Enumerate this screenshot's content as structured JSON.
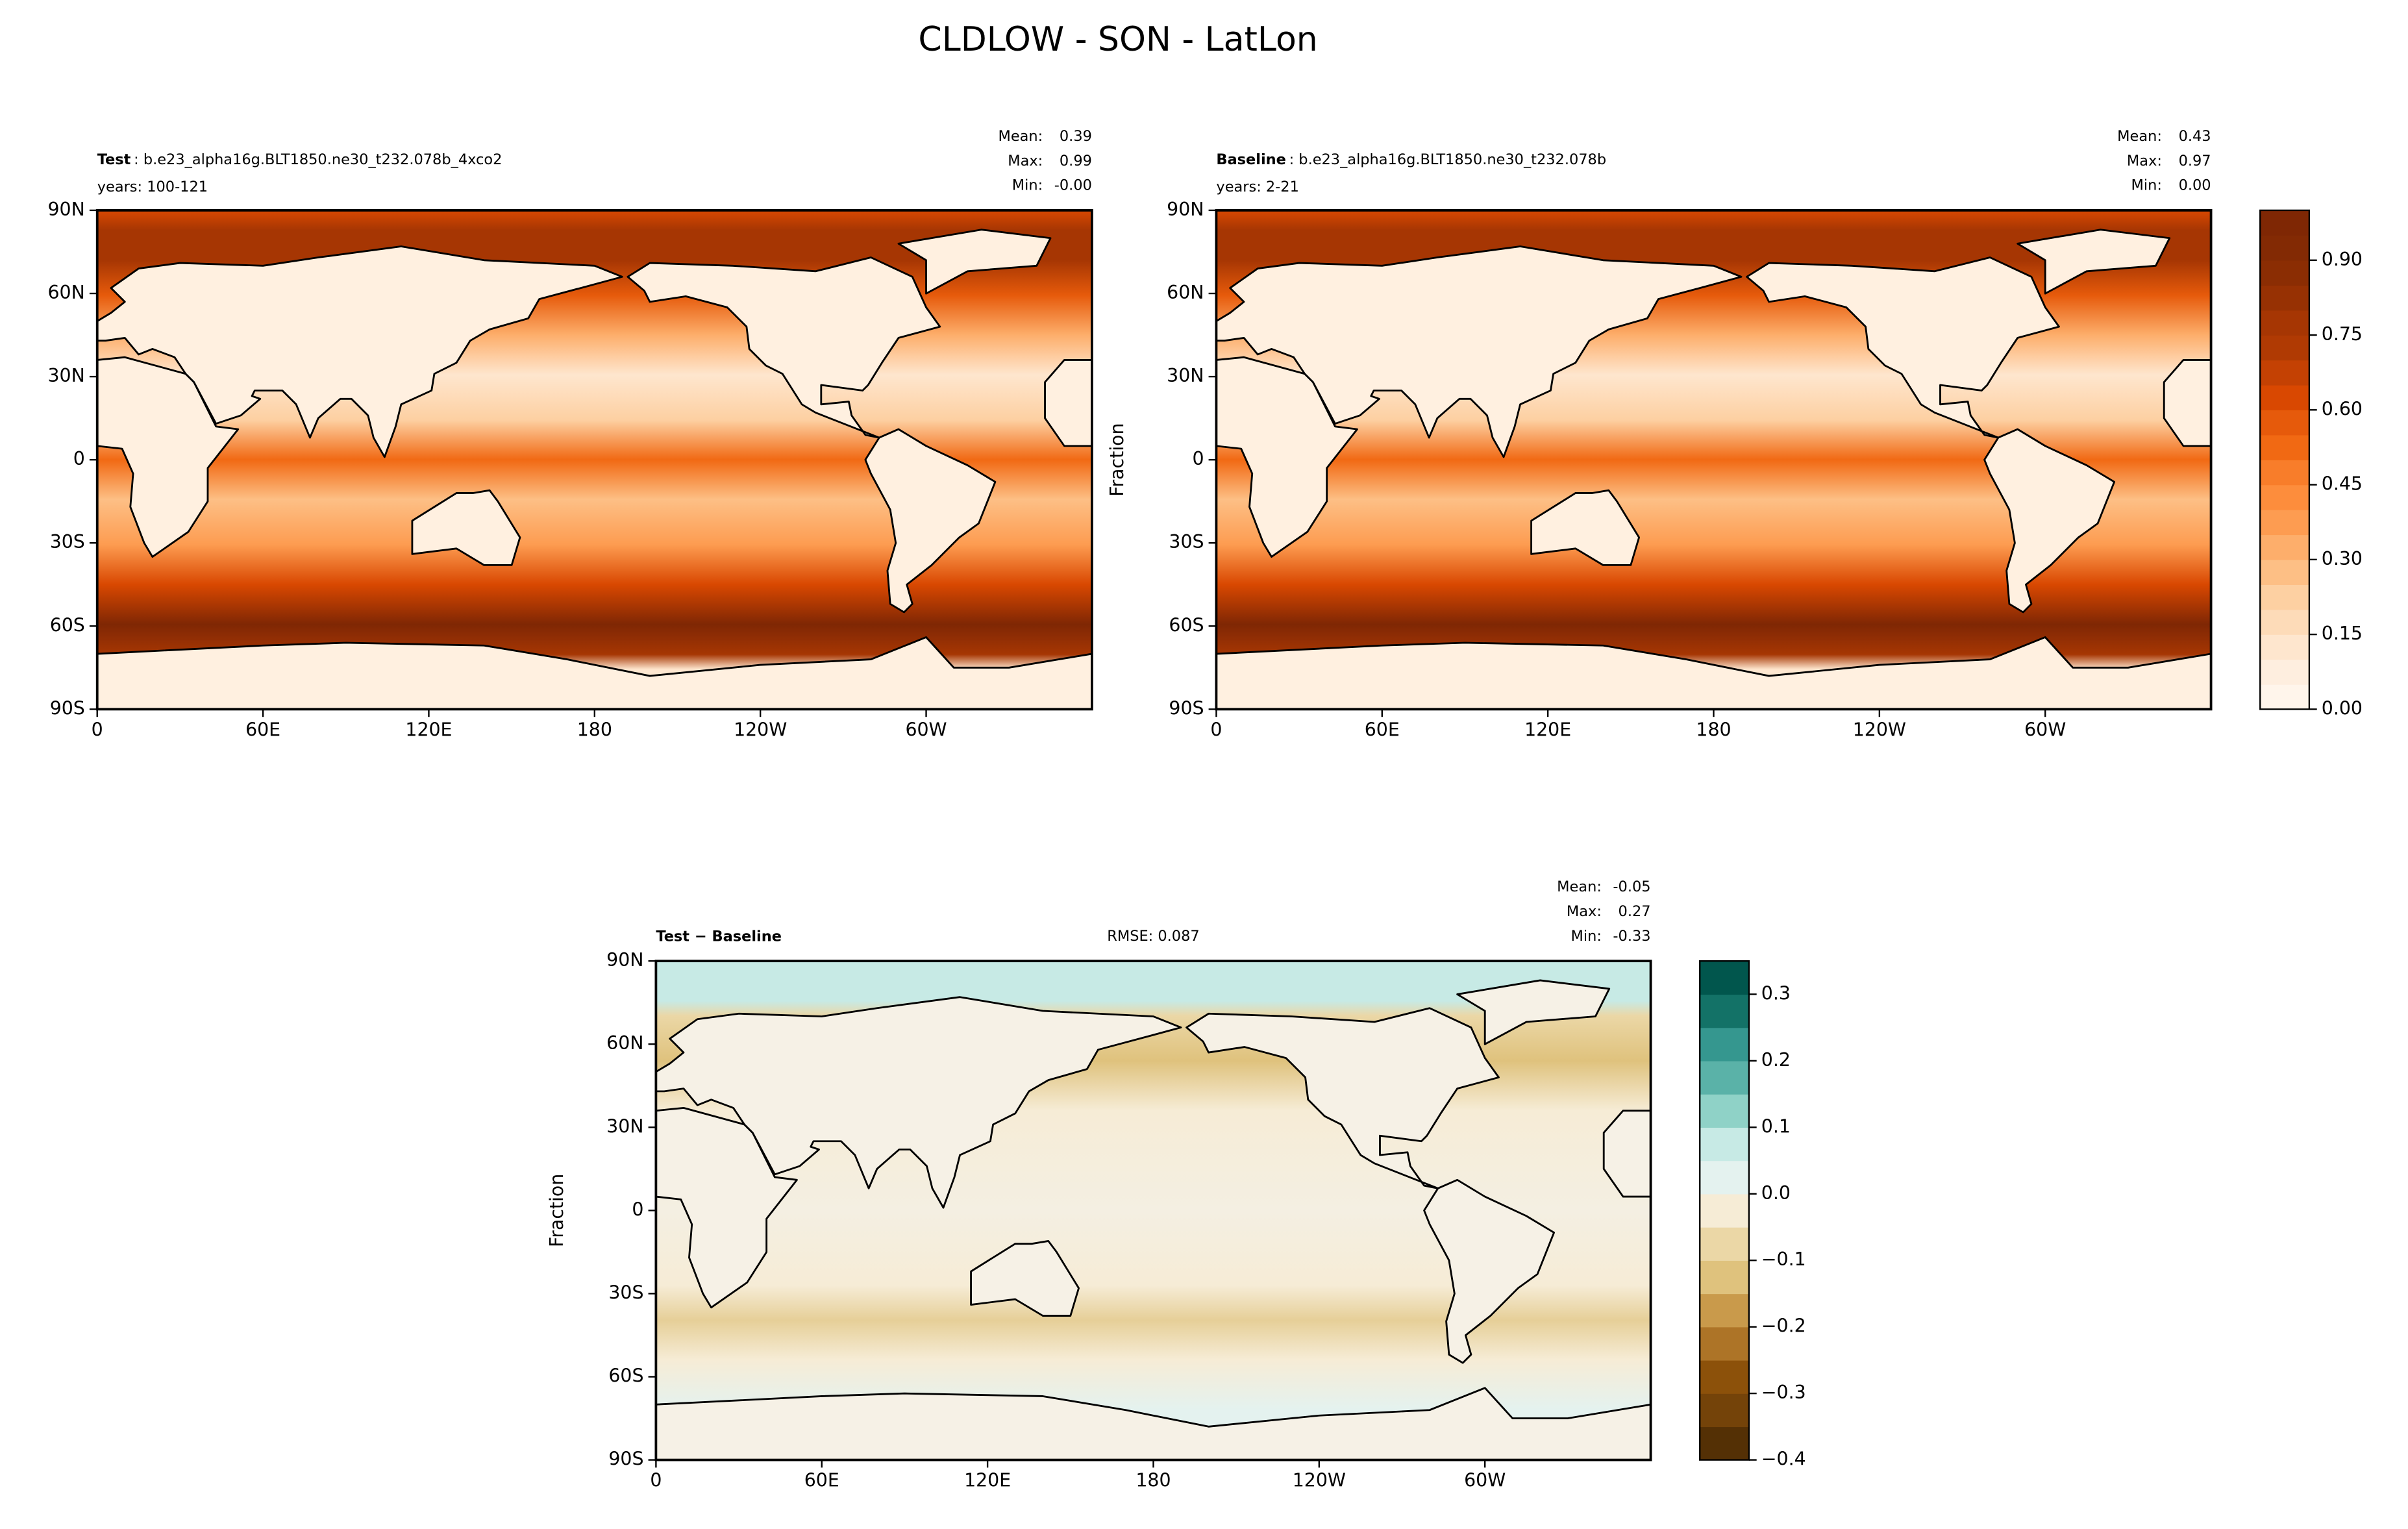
{
  "title": "CLDLOW - SON - LatLon",
  "chart_data": [
    {
      "type": "contour-map",
      "colormap": "Oranges",
      "label": "Test",
      "case": ": b.e23_alpha16g.BLT1850.ne30_t232.078b_4xco2",
      "years": "years: 100-121",
      "stats": [
        {
          "name": "Mean:",
          "value": "0.39"
        },
        {
          "name": "Max:",
          "value": "0.99"
        },
        {
          "name": "Min:",
          "value": "-0.00"
        }
      ],
      "xlim": [
        0,
        360
      ],
      "ylim": [
        -90,
        90
      ],
      "xticks": [
        0,
        {
          "value": 60,
          "label": "60E"
        },
        {
          "value": 120,
          "label": "120E"
        },
        180,
        {
          "value": 240,
          "label": "120W"
        },
        {
          "value": 300,
          "label": "60W"
        }
      ],
      "yticks": [
        {
          "value": -90,
          "label": "90S"
        },
        {
          "value": -60,
          "label": "60S"
        },
        {
          "value": -30,
          "label": "30S"
        },
        0,
        {
          "value": 30,
          "label": "30N"
        },
        {
          "value": 60,
          "label": "60N"
        },
        {
          "value": 90,
          "label": "90N"
        }
      ]
    },
    {
      "type": "contour-map",
      "colormap": "Oranges",
      "label": "Baseline",
      "case": ": b.e23_alpha16g.BLT1850.ne30_t232.078b",
      "years": "years: 2-21",
      "stats": [
        {
          "name": "Mean:",
          "value": "0.43"
        },
        {
          "name": "Max:",
          "value": "0.97"
        },
        {
          "name": "Min:",
          "value": "0.00"
        }
      ],
      "ylabel": "Fraction",
      "xlim": [
        0,
        360
      ],
      "ylim": [
        -90,
        90
      ],
      "xticks": [
        0,
        {
          "value": 60,
          "label": "60E"
        },
        {
          "value": 120,
          "label": "120E"
        },
        180,
        {
          "value": 240,
          "label": "120W"
        },
        {
          "value": 300,
          "label": "60W"
        }
      ],
      "yticks": [
        {
          "value": -90,
          "label": "90S"
        },
        {
          "value": -60,
          "label": "60S"
        },
        {
          "value": -30,
          "label": "30S"
        },
        0,
        {
          "value": 30,
          "label": "30N"
        },
        {
          "value": 60,
          "label": "60N"
        },
        {
          "value": 90,
          "label": "90N"
        }
      ],
      "colorbar": {
        "lim": [
          0,
          1
        ],
        "ticks": [
          {
            "value": 0,
            "label": "0.00"
          },
          0.15,
          {
            "value": 0.3,
            "label": "0.30"
          },
          0.45,
          {
            "value": 0.6,
            "label": "0.60"
          },
          0.75,
          {
            "value": 0.9,
            "label": "0.90"
          }
        ],
        "colors": [
          "#fff5eb",
          "#feeedf",
          "#fee6ce",
          "#fddbb8",
          "#fdd0a2",
          "#fdbf85",
          "#fdae6b",
          "#fd9c51",
          "#fd8d3c",
          "#f87d2a",
          "#f16913",
          "#e65a0b",
          "#d94801",
          "#c44103",
          "#b03a03",
          "#a63603",
          "#973103",
          "#8b2d03",
          "#832a04",
          "#7f2704"
        ]
      }
    },
    {
      "type": "contour-map",
      "colormap": "BrBG",
      "label": "Test − Baseline",
      "rmse": "RMSE: 0.087",
      "stats": [
        {
          "name": "Mean:",
          "value": "-0.05"
        },
        {
          "name": "Max:",
          "value": "0.27"
        },
        {
          "name": "Min:",
          "value": "-0.33"
        }
      ],
      "ylabel": "Fraction",
      "xlim": [
        0,
        360
      ],
      "ylim": [
        -90,
        90
      ],
      "xticks": [
        0,
        {
          "value": 60,
          "label": "60E"
        },
        {
          "value": 120,
          "label": "120E"
        },
        180,
        {
          "value": 240,
          "label": "120W"
        },
        {
          "value": 300,
          "label": "60W"
        }
      ],
      "yticks": [
        {
          "value": -90,
          "label": "90S"
        },
        {
          "value": -60,
          "label": "60S"
        },
        {
          "value": -30,
          "label": "30S"
        },
        0,
        {
          "value": 30,
          "label": "30N"
        },
        {
          "value": 60,
          "label": "60N"
        },
        {
          "value": 90,
          "label": "90N"
        }
      ],
      "colorbar": {
        "lim": [
          -0.4,
          0.35
        ],
        "ticks": [
          {
            "value": -0.4,
            "label": "−0.4"
          },
          {
            "value": -0.3,
            "label": "−0.3"
          },
          {
            "value": -0.2,
            "label": "−0.2"
          },
          {
            "value": -0.1,
            "label": "−0.1"
          },
          {
            "value": 0,
            "label": "0.0"
          },
          0.1,
          0.2,
          0.3
        ],
        "colors": [
          "#543005",
          "#744309",
          "#8c510a",
          "#ad7427",
          "#c99a4b",
          "#dfc27d",
          "#ebd7a6",
          "#f6ecd6",
          "#e4f2ef",
          "#c7eae5",
          "#8fd2c7",
          "#5ab2a8",
          "#35978f",
          "#137267",
          "#01564d"
        ]
      }
    }
  ]
}
